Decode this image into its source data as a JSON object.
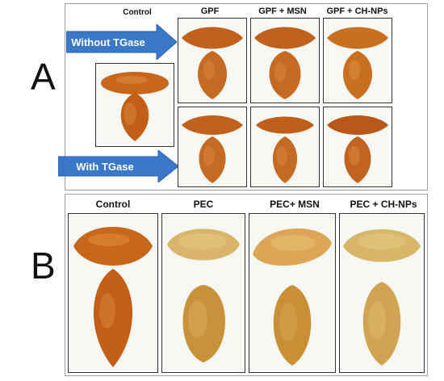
{
  "panels": {
    "a": {
      "letter": "A",
      "labels": {
        "control": "Control",
        "gpf": "GPF",
        "gpf_msn": "GPF + MSN",
        "gpf_chnps": "GPF + CH-NPs"
      },
      "arrows": {
        "without": "Without TGase",
        "with": "With TGase"
      }
    },
    "b": {
      "letter": "B",
      "labels": {
        "control": "Control",
        "pec": "PEC",
        "pec_msn": "PEC+ MSN",
        "pec_chnps": "PEC + CH-NPs"
      }
    }
  },
  "colors": {
    "arrow_blue": "#3a78c9",
    "fried_orange": "#c8661c",
    "fried_dark": "#a84a10",
    "pale_crumb": "#d9b46a",
    "golden_crumb": "#c9923a"
  }
}
